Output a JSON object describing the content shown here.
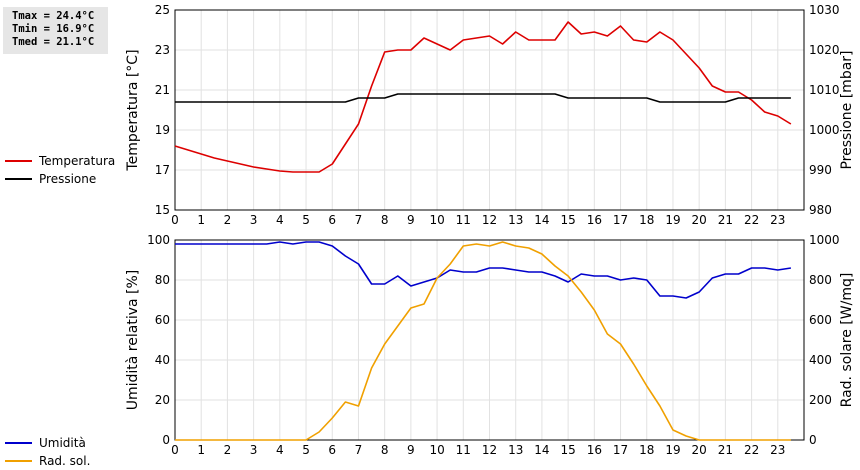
{
  "stats": {
    "tmax": "Tmax = 24.4°C",
    "tmin": "Tmin = 16.9°C",
    "tmed": "Tmed = 21.1°C"
  },
  "chart_data": [
    {
      "type": "line",
      "xlim": [
        0,
        24
      ],
      "x_ticks": [
        0,
        1,
        2,
        3,
        4,
        5,
        6,
        7,
        8,
        9,
        10,
        11,
        12,
        13,
        14,
        15,
        16,
        17,
        18,
        19,
        20,
        21,
        22,
        23
      ],
      "ylabel": "Temperatura [°C]",
      "ylim": [
        15,
        25
      ],
      "y_ticks": [
        15,
        17,
        19,
        21,
        23,
        25
      ],
      "y2label": "Pressione [mbar]",
      "y2lim": [
        980,
        1030
      ],
      "y2_ticks": [
        980,
        990,
        1000,
        1010,
        1020,
        1030
      ],
      "grid": true,
      "legend_position": "left",
      "series": [
        {
          "name": "Temperatura",
          "axis": "left",
          "color": "#dd0000",
          "points": [
            [
              0,
              18.2
            ],
            [
              0.5,
              18.0
            ],
            [
              1,
              17.8
            ],
            [
              1.5,
              17.6
            ],
            [
              2,
              17.45
            ],
            [
              2.5,
              17.3
            ],
            [
              3,
              17.15
            ],
            [
              3.5,
              17.05
            ],
            [
              4,
              16.95
            ],
            [
              4.5,
              16.9
            ],
            [
              5,
              16.9
            ],
            [
              5.5,
              16.9
            ],
            [
              6,
              17.3
            ],
            [
              6.5,
              18.3
            ],
            [
              7,
              19.3
            ],
            [
              7.5,
              21.2
            ],
            [
              8,
              22.9
            ],
            [
              8.5,
              23.0
            ],
            [
              9,
              23.0
            ],
            [
              9.5,
              23.6
            ],
            [
              10,
              23.3
            ],
            [
              10.5,
              23.0
            ],
            [
              11,
              23.5
            ],
            [
              11.5,
              23.6
            ],
            [
              12,
              23.7
            ],
            [
              12.5,
              23.3
            ],
            [
              13,
              23.9
            ],
            [
              13.5,
              23.5
            ],
            [
              14,
              23.5
            ],
            [
              14.5,
              23.5
            ],
            [
              15,
              24.4
            ],
            [
              15.5,
              23.8
            ],
            [
              16,
              23.9
            ],
            [
              16.5,
              23.7
            ],
            [
              17,
              24.2
            ],
            [
              17.5,
              23.5
            ],
            [
              18,
              23.4
            ],
            [
              18.5,
              23.9
            ],
            [
              19,
              23.5
            ],
            [
              19.5,
              22.8
            ],
            [
              20,
              22.1
            ],
            [
              20.5,
              21.2
            ],
            [
              21,
              20.9
            ],
            [
              21.5,
              20.9
            ],
            [
              22,
              20.5
            ],
            [
              22.5,
              19.9
            ],
            [
              23,
              19.7
            ],
            [
              23.5,
              19.3
            ]
          ]
        },
        {
          "name": "Pressione",
          "axis": "right",
          "color": "#000000",
          "points": [
            [
              0,
              1007
            ],
            [
              6.5,
              1007
            ],
            [
              7,
              1008
            ],
            [
              8,
              1008
            ],
            [
              8.5,
              1009
            ],
            [
              14.5,
              1009
            ],
            [
              15,
              1008
            ],
            [
              18,
              1008
            ],
            [
              18.5,
              1007
            ],
            [
              21,
              1007
            ],
            [
              21.5,
              1008
            ],
            [
              23.5,
              1008
            ]
          ]
        }
      ]
    },
    {
      "type": "line",
      "xlim": [
        0,
        24
      ],
      "x_ticks": [
        0,
        1,
        2,
        3,
        4,
        5,
        6,
        7,
        8,
        9,
        10,
        11,
        12,
        13,
        14,
        15,
        16,
        17,
        18,
        19,
        20,
        21,
        22,
        23
      ],
      "ylabel": "Umidità relativa [%]",
      "ylim": [
        0,
        100
      ],
      "y_ticks": [
        0,
        20,
        40,
        60,
        80,
        100
      ],
      "y2label": "Rad. solare [W/mq]",
      "y2lim": [
        0,
        1000
      ],
      "y2_ticks": [
        0,
        200,
        400,
        600,
        800,
        1000
      ],
      "grid": true,
      "legend_position": "left",
      "series": [
        {
          "name": "Umidità",
          "axis": "left",
          "color": "#0000cc",
          "points": [
            [
              0,
              98
            ],
            [
              3.5,
              98
            ],
            [
              4,
              99
            ],
            [
              4.5,
              98
            ],
            [
              5,
              99
            ],
            [
              5.5,
              99
            ],
            [
              6,
              97
            ],
            [
              6.5,
              92
            ],
            [
              7,
              88
            ],
            [
              7.5,
              78
            ],
            [
              8,
              78
            ],
            [
              8.5,
              82
            ],
            [
              9,
              77
            ],
            [
              9.5,
              79
            ],
            [
              10,
              81
            ],
            [
              10.5,
              85
            ],
            [
              11,
              84
            ],
            [
              11.5,
              84
            ],
            [
              12,
              86
            ],
            [
              12.5,
              86
            ],
            [
              13,
              85
            ],
            [
              13.5,
              84
            ],
            [
              14,
              84
            ],
            [
              14.5,
              82
            ],
            [
              15,
              79
            ],
            [
              15.5,
              83
            ],
            [
              16,
              82
            ],
            [
              16.5,
              82
            ],
            [
              17,
              80
            ],
            [
              17.5,
              81
            ],
            [
              18,
              80
            ],
            [
              18.5,
              72
            ],
            [
              19,
              72
            ],
            [
              19.5,
              71
            ],
            [
              20,
              74
            ],
            [
              20.5,
              81
            ],
            [
              21,
              83
            ],
            [
              21.5,
              83
            ],
            [
              22,
              86
            ],
            [
              22.5,
              86
            ],
            [
              23,
              85
            ],
            [
              23.5,
              86
            ]
          ]
        },
        {
          "name": "Rad. sol.",
          "axis": "right",
          "color": "#f0a000",
          "points": [
            [
              0,
              0
            ],
            [
              5,
              0
            ],
            [
              5.5,
              40
            ],
            [
              6,
              110
            ],
            [
              6.5,
              190
            ],
            [
              7,
              170
            ],
            [
              7.5,
              360
            ],
            [
              8,
              480
            ],
            [
              8.5,
              570
            ],
            [
              9,
              660
            ],
            [
              9.5,
              680
            ],
            [
              10,
              810
            ],
            [
              10.5,
              880
            ],
            [
              11,
              970
            ],
            [
              11.5,
              980
            ],
            [
              12,
              970
            ],
            [
              12.5,
              990
            ],
            [
              13,
              970
            ],
            [
              13.5,
              960
            ],
            [
              14,
              930
            ],
            [
              14.5,
              870
            ],
            [
              15,
              820
            ],
            [
              15.5,
              740
            ],
            [
              16,
              650
            ],
            [
              16.5,
              530
            ],
            [
              17,
              480
            ],
            [
              17.5,
              380
            ],
            [
              18,
              270
            ],
            [
              18.5,
              170
            ],
            [
              19,
              50
            ],
            [
              19.5,
              20
            ],
            [
              20,
              0
            ],
            [
              23.5,
              0
            ]
          ]
        }
      ]
    }
  ]
}
